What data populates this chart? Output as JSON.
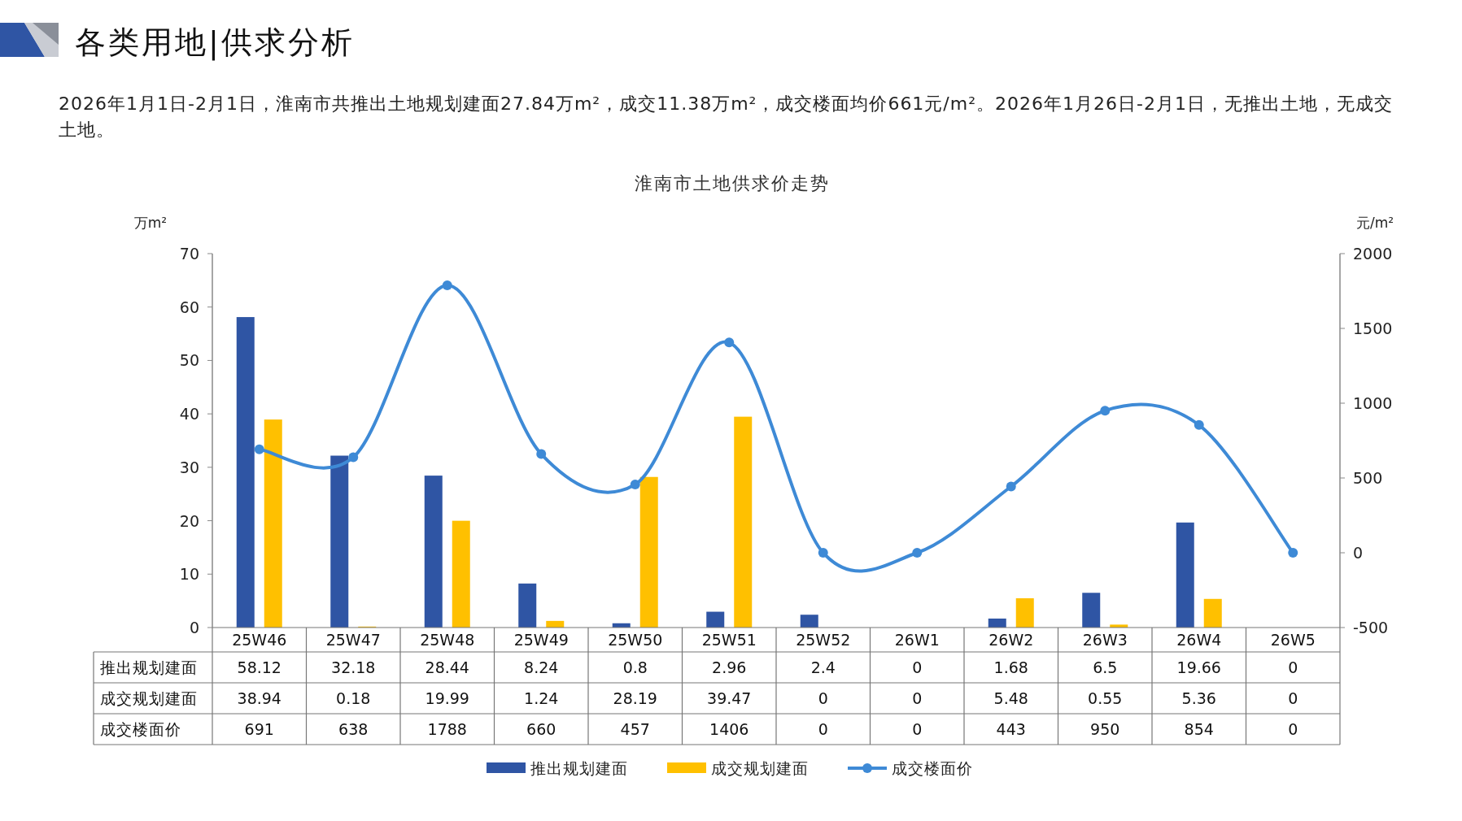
{
  "chart_data": {
    "type": "bar",
    "title": "淮南市土地供求价走势",
    "subtitle": "2026年1月1日-2月1日，淮南市共推出土地规划建面27.84万m²，成交11.38万m²，成交楼面均价661元/m²。2026年1月26日-2月1日，无推出土地，无成交土地。",
    "annotations": [
      "各类用地|供求分析"
    ],
    "ylabel": "万m²",
    "y2label": "元/m²",
    "categories": [
      "25W46",
      "25W47",
      "25W48",
      "25W49",
      "25W50",
      "25W51",
      "25W52",
      "26W1",
      "26W2",
      "26W3",
      "26W4",
      "26W5"
    ],
    "series": [
      {
        "name": "推出规划建面",
        "color": "#2f55a4",
        "values": [
          58.12,
          32.18,
          28.44,
          8.24,
          0.8,
          2.96,
          2.4,
          0,
          1.68,
          6.5,
          19.66,
          0
        ]
      },
      {
        "name": "成交规划建面",
        "color": "#ffc000",
        "values": [
          38.94,
          0.18,
          19.99,
          1.24,
          28.19,
          39.47,
          0,
          0,
          5.48,
          0.55,
          5.36,
          0
        ]
      },
      {
        "name": "成交楼面价",
        "type": "line",
        "axis": "y2",
        "color": "#3e8ad6",
        "marker": "circle",
        "values": [
          691,
          638,
          1788,
          660,
          457,
          1406,
          0,
          0,
          443,
          950,
          854,
          0
        ]
      }
    ],
    "ylim": [
      0,
      70
    ],
    "yticks": [
      0,
      10,
      20,
      30,
      40,
      50,
      60,
      70
    ],
    "y2lim": [
      -500,
      2000
    ],
    "y2ticks": [
      -500,
      0,
      500,
      1000,
      1500,
      2000
    ],
    "data_labels": true,
    "legend": "bottom",
    "grid": false
  }
}
